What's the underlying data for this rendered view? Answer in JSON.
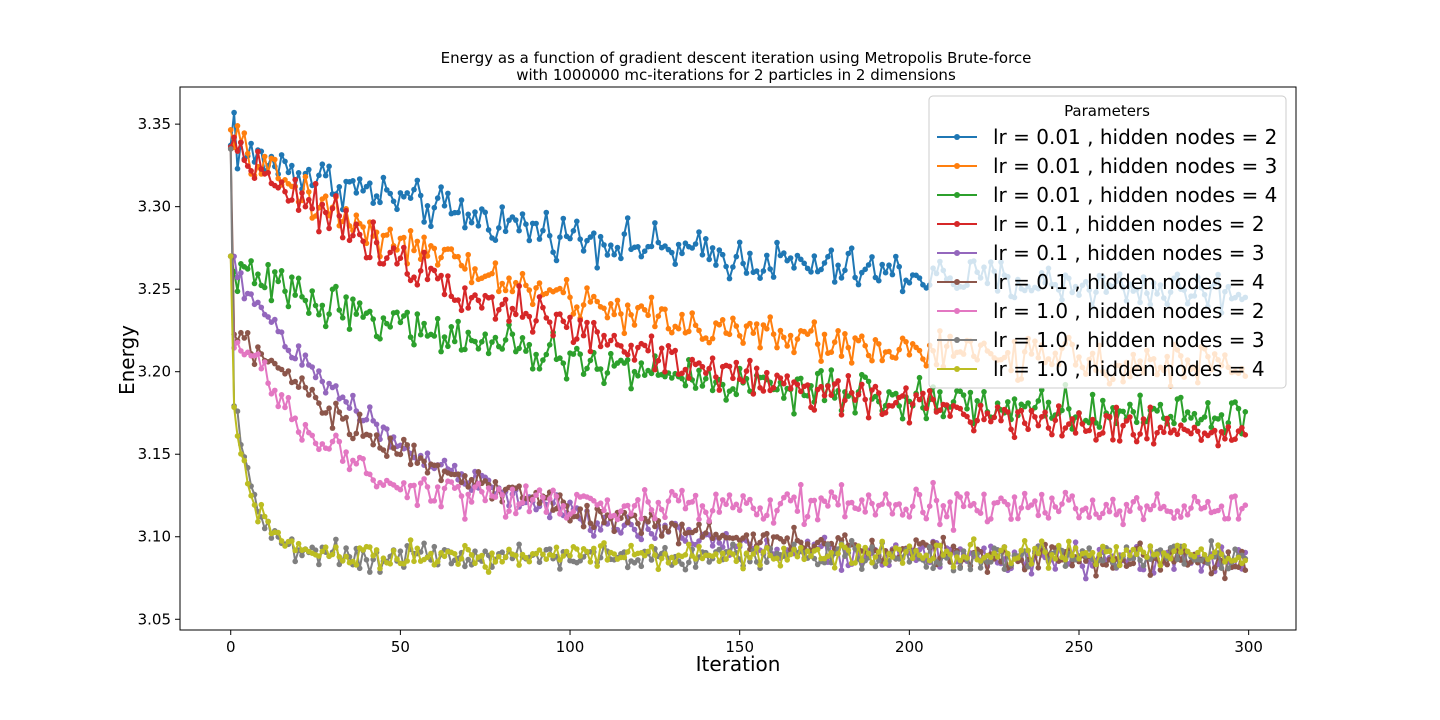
{
  "chart_data": {
    "type": "line",
    "title": "Energy as a function of gradient descent iteration using Metropolis Brute-force",
    "subtitle": "with 1000000 mc-iterations for 2 particles in 2 dimensions",
    "xlabel": "Iteration",
    "ylabel": "Energy",
    "xlim": [
      -14.95,
      313.95
    ],
    "ylim": [
      3.0435,
      3.3725
    ],
    "xticks": [
      "0",
      "50",
      "100",
      "150",
      "200",
      "250",
      "300"
    ],
    "yticks": [
      "3.05",
      "3.10",
      "3.15",
      "3.20",
      "3.25",
      "3.30",
      "3.35"
    ],
    "grid": false,
    "legend": {
      "title": "Parameters",
      "placement": "top-right"
    },
    "n_points": 300,
    "series": [
      {
        "name": "lr = 0.01 , hidden nodes = 2",
        "color": "#1f77b4",
        "start": 3.335,
        "end": 3.238,
        "tau": 130,
        "noise": 0.012,
        "spike": [
          1,
          3.357
        ]
      },
      {
        "name": "lr = 0.01 , hidden nodes = 3",
        "color": "#ff7f0e",
        "start": 3.338,
        "end": 3.198,
        "tau": 90,
        "noise": 0.011,
        "spike": [
          2,
          3.349
        ]
      },
      {
        "name": "lr = 0.01 , hidden nodes = 4",
        "color": "#2ca02c",
        "start": 3.262,
        "end": 3.165,
        "tau": 120,
        "noise": 0.011,
        "spike": [
          0,
          3.27
        ]
      },
      {
        "name": "lr = 0.1 , hidden nodes = 2",
        "color": "#d62728",
        "start": 3.338,
        "end": 3.15,
        "tau": 110,
        "noise": 0.011,
        "spike": [
          1,
          3.342
        ]
      },
      {
        "name": "lr = 0.1 , hidden nodes = 3",
        "color": "#9467bd",
        "start": 3.265,
        "end": 3.084,
        "tau": 55,
        "noise": 0.008,
        "spike": [
          0,
          3.27
        ]
      },
      {
        "name": "lr = 0.1 , hidden nodes = 4",
        "color": "#8c564b",
        "start": 3.225,
        "end": 3.083,
        "tau": 70,
        "noise": 0.008,
        "spike": [
          0,
          3.335
        ]
      },
      {
        "name": "lr = 1.0 , hidden nodes = 2",
        "color": "#e377c2",
        "start": 3.23,
        "end": 3.118,
        "tau": 25,
        "noise": 0.01,
        "spike": [
          0,
          3.27
        ]
      },
      {
        "name": "lr = 1.0 , hidden nodes = 3",
        "color": "#7f7f7f",
        "start": 3.205,
        "end": 3.088,
        "tau": 6,
        "noise": 0.007,
        "spike": [
          0,
          3.335
        ]
      },
      {
        "name": "lr = 1.0 , hidden nodes = 4",
        "color": "#bcbd22",
        "start": 3.195,
        "end": 3.089,
        "tau": 6,
        "noise": 0.007,
        "spike": [
          0,
          3.27
        ]
      }
    ]
  }
}
